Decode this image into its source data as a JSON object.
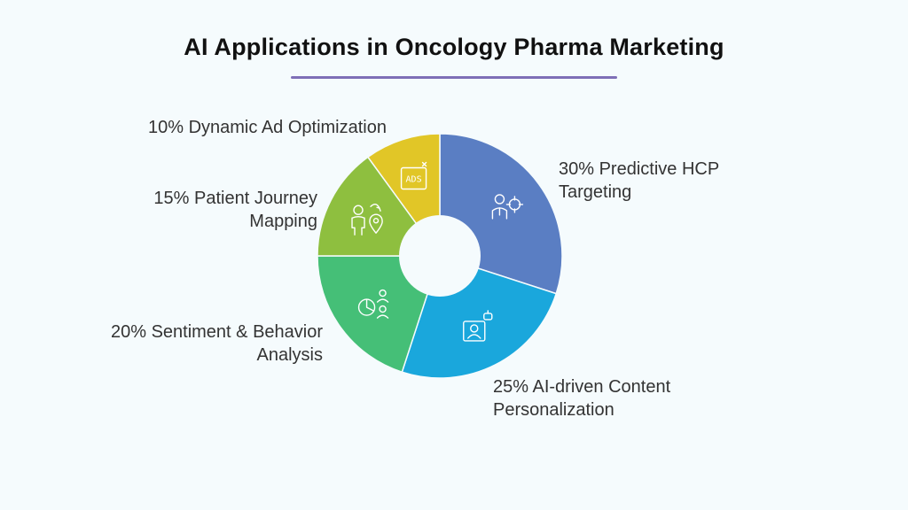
{
  "chart_data": {
    "type": "pie",
    "title": "AI Applications in Oncology Pharma Marketing",
    "slices": [
      {
        "percent": "30%",
        "value": 30,
        "line1": "Predictive HCP",
        "line2": "Targeting",
        "color": "#5a7ec3",
        "icon": "hcp-target-icon"
      },
      {
        "percent": "25%",
        "value": 25,
        "line1": "AI-driven Content",
        "line2": "Personalization",
        "color": "#1aa7dc",
        "icon": "ai-profile-icon"
      },
      {
        "percent": "20%",
        "value": 20,
        "line1": "Sentiment & Behavior",
        "line2": "Analysis",
        "color": "#45bf77",
        "icon": "analysis-chart-icon"
      },
      {
        "percent": "15%",
        "value": 15,
        "line1": "Patient Journey",
        "line2": "Mapping",
        "color": "#8ebf3f",
        "icon": "journey-map-icon"
      },
      {
        "percent": "10%",
        "value": 10,
        "line1": "Dynamic Ad Optimization",
        "line2": "",
        "color": "#e1c627",
        "icon": "ads-icon",
        "icon_text": "ADS"
      }
    ],
    "accent_color": "#7e6fb7"
  }
}
